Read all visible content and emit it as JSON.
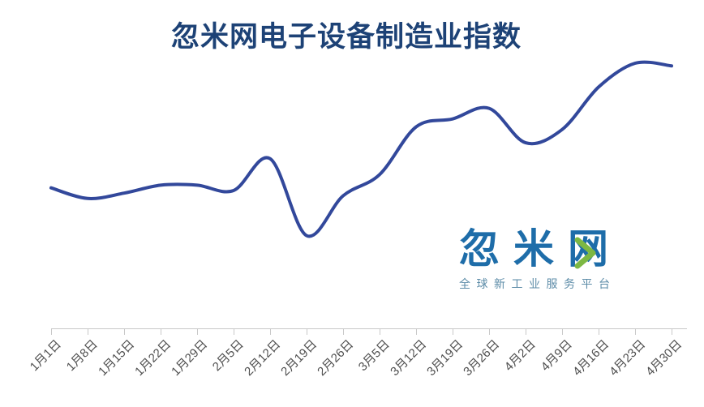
{
  "page": {
    "background_color": "#FFFFFF"
  },
  "header": {
    "title": "忽米网电子设备制造业指数",
    "title_color": "#1D4276"
  },
  "watermark_logo": {
    "brand_text": "忽米网",
    "brand_color": "#1E6DA9",
    "chevron_icon": "right-chevron",
    "chevron_color": "#7DB843",
    "tagline": "全球新工业服务平台",
    "tagline_color": "#5D8CA8"
  },
  "chart_data": {
    "type": "line",
    "title": "忽米网电子设备制造业指数",
    "categories": [
      "1月1日",
      "1月8日",
      "1月15日",
      "1月22日",
      "1月29日",
      "2月5日",
      "2月12日",
      "2月19日",
      "2月26日",
      "3月5日",
      "3月12日",
      "3月19日",
      "3月26日",
      "4月2日",
      "4月9日",
      "4月16日",
      "4月23日",
      "4月30日"
    ],
    "values": [
      53,
      49,
      51,
      54,
      54,
      52,
      64,
      35,
      50,
      58,
      76,
      79,
      83,
      70,
      75,
      91,
      100,
      99
    ],
    "values_note": "relative index level on a 0-100 scale estimated from curve height; the chart displays no y-axis scale",
    "xlabel": "",
    "ylabel": "",
    "x_tick_rotation_deg": 45,
    "grid": false,
    "legend": false,
    "y_axis_visible": false,
    "line_color": "#32489B",
    "line_width": 4,
    "axis_color": "#C9C9C9",
    "tick_label_color": "#4F4F4F"
  }
}
